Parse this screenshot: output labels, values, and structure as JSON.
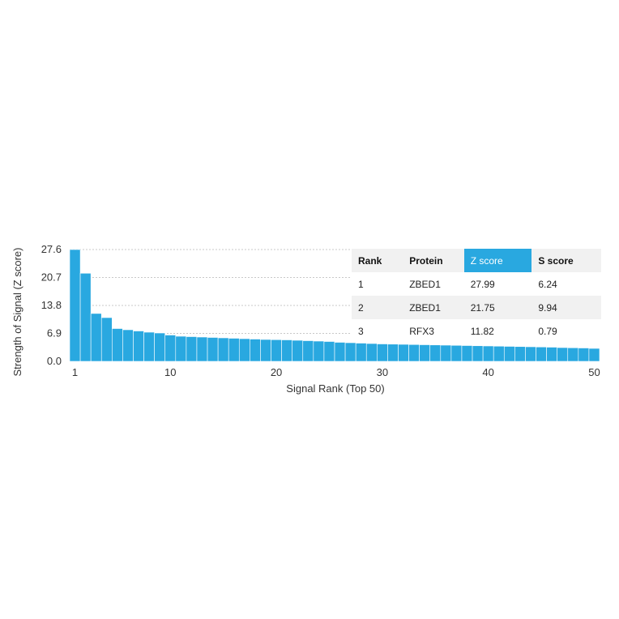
{
  "chart_data": {
    "type": "bar",
    "xlabel": "Signal Rank (Top 50)",
    "ylabel": "Strength of Signal (Z score)",
    "ylim": [
      0,
      27.6
    ],
    "yticks": [
      "0.0",
      "6.9",
      "13.8",
      "20.7",
      "27.6"
    ],
    "xticks": [
      "1",
      "10",
      "20",
      "30",
      "40",
      "50"
    ],
    "grid": "horizontal dashed",
    "bar_color": "#29a8e0",
    "categories": [
      1,
      2,
      3,
      4,
      5,
      6,
      7,
      8,
      9,
      10,
      11,
      12,
      13,
      14,
      15,
      16,
      17,
      18,
      19,
      20,
      21,
      22,
      23,
      24,
      25,
      26,
      27,
      28,
      29,
      30,
      31,
      32,
      33,
      34,
      35,
      36,
      37,
      38,
      39,
      40,
      41,
      42,
      43,
      44,
      45,
      46,
      47,
      48,
      49,
      50
    ],
    "values": [
      27.99,
      21.75,
      11.82,
      10.8,
      8.1,
      7.8,
      7.5,
      7.2,
      7.0,
      6.5,
      6.2,
      6.1,
      6.0,
      5.9,
      5.8,
      5.7,
      5.6,
      5.5,
      5.4,
      5.35,
      5.3,
      5.2,
      5.1,
      5.0,
      4.9,
      4.7,
      4.6,
      4.5,
      4.4,
      4.3,
      4.25,
      4.2,
      4.15,
      4.1,
      4.05,
      4.0,
      3.95,
      3.9,
      3.85,
      3.8,
      3.75,
      3.7,
      3.65,
      3.6,
      3.55,
      3.5,
      3.4,
      3.35,
      3.3,
      3.2
    ]
  },
  "table": {
    "headers": [
      "Rank",
      "Protein",
      "Z score",
      "S score"
    ],
    "highlight_color": "#29a8e0",
    "rows": [
      {
        "rank": "1",
        "protein": "ZBED1",
        "z": "27.99",
        "s": "6.24"
      },
      {
        "rank": "2",
        "protein": "ZBED1",
        "z": "21.75",
        "s": "9.94"
      },
      {
        "rank": "3",
        "protein": "RFX3",
        "z": "11.82",
        "s": "0.79"
      }
    ]
  }
}
